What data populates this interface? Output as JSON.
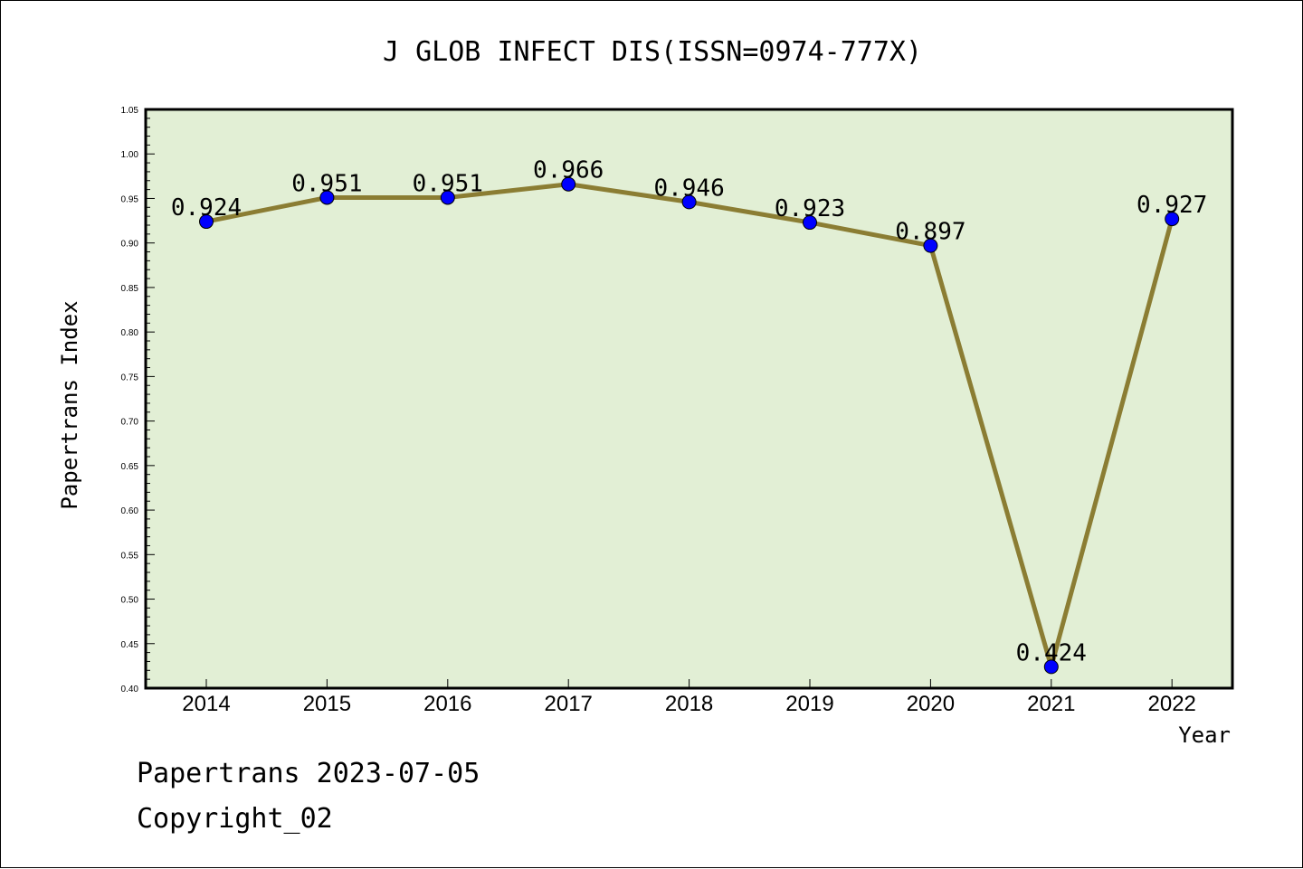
{
  "chart_data": {
    "type": "line",
    "title": "J GLOB INFECT DIS(ISSN=0974-777X)",
    "xlabel": "Year",
    "ylabel": "Papertrans Index",
    "categories": [
      "2014",
      "2015",
      "2016",
      "2017",
      "2018",
      "2019",
      "2020",
      "2021",
      "2022"
    ],
    "series": [
      {
        "values": [
          0.924,
          0.951,
          0.951,
          0.966,
          0.946,
          0.923,
          0.897,
          0.424,
          0.927
        ]
      }
    ],
    "data_labels": [
      "0.924",
      "0.951",
      "0.951",
      "0.966",
      "0.946",
      "0.923",
      "0.897",
      "0.424",
      "0.927"
    ],
    "ylim": [
      0.4,
      1.05
    ],
    "yticks": [
      "0.40",
      "0.45",
      "0.50",
      "0.55",
      "0.60",
      "0.65",
      "0.70",
      "0.75",
      "0.80",
      "0.85",
      "0.90",
      "0.95",
      "1.00",
      "1.05"
    ],
    "grid": false,
    "colors": {
      "plot_background": "#e2efd5",
      "line": "#8b7d33",
      "marker": "#0000ff"
    }
  },
  "footer": {
    "line1": "Papertrans 2023-07-05",
    "line2": "Copyright_02"
  }
}
